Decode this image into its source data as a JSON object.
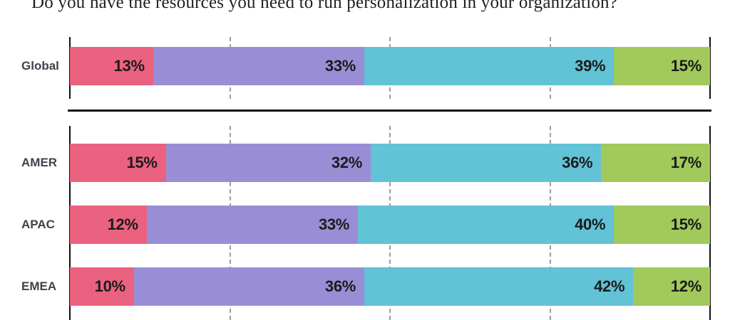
{
  "title": "Do you have the resources you need to run personalization in your organization?",
  "chart_data": {
    "type": "bar",
    "variant": "stacked-horizontal",
    "title": "Do you have the resources you need to run personalization in your organization?",
    "unit": "%",
    "xlim": [
      0,
      100
    ],
    "gridlines_at_percent": [
      25,
      50,
      75
    ],
    "grid": "dashed-vertical",
    "legend": "none",
    "categories": [
      "Global",
      "AMER",
      "APAC",
      "EMEA"
    ],
    "row_groups": [
      {
        "name": "global",
        "category_indexes": [
          0
        ]
      },
      {
        "name": "regions",
        "category_indexes": [
          1,
          2,
          3
        ]
      }
    ],
    "series": [
      {
        "name": "series-1-pink",
        "color": "#eb6280",
        "values": [
          13,
          15,
          12,
          10
        ]
      },
      {
        "name": "series-2-purple",
        "color": "#998ed6",
        "values": [
          33,
          32,
          33,
          36
        ]
      },
      {
        "name": "series-3-teal",
        "color": "#62c2d6",
        "values": [
          39,
          36,
          40,
          42
        ]
      },
      {
        "name": "series-4-green",
        "color": "#a1c95c",
        "values": [
          15,
          17,
          15,
          12
        ]
      }
    ]
  },
  "colors": {
    "axis": "#111111",
    "gridline": "#9c9c9c",
    "separator": "#111111",
    "value_label": "#1b1b1b",
    "category_label": "#3e434b",
    "background": "#ffffff"
  }
}
